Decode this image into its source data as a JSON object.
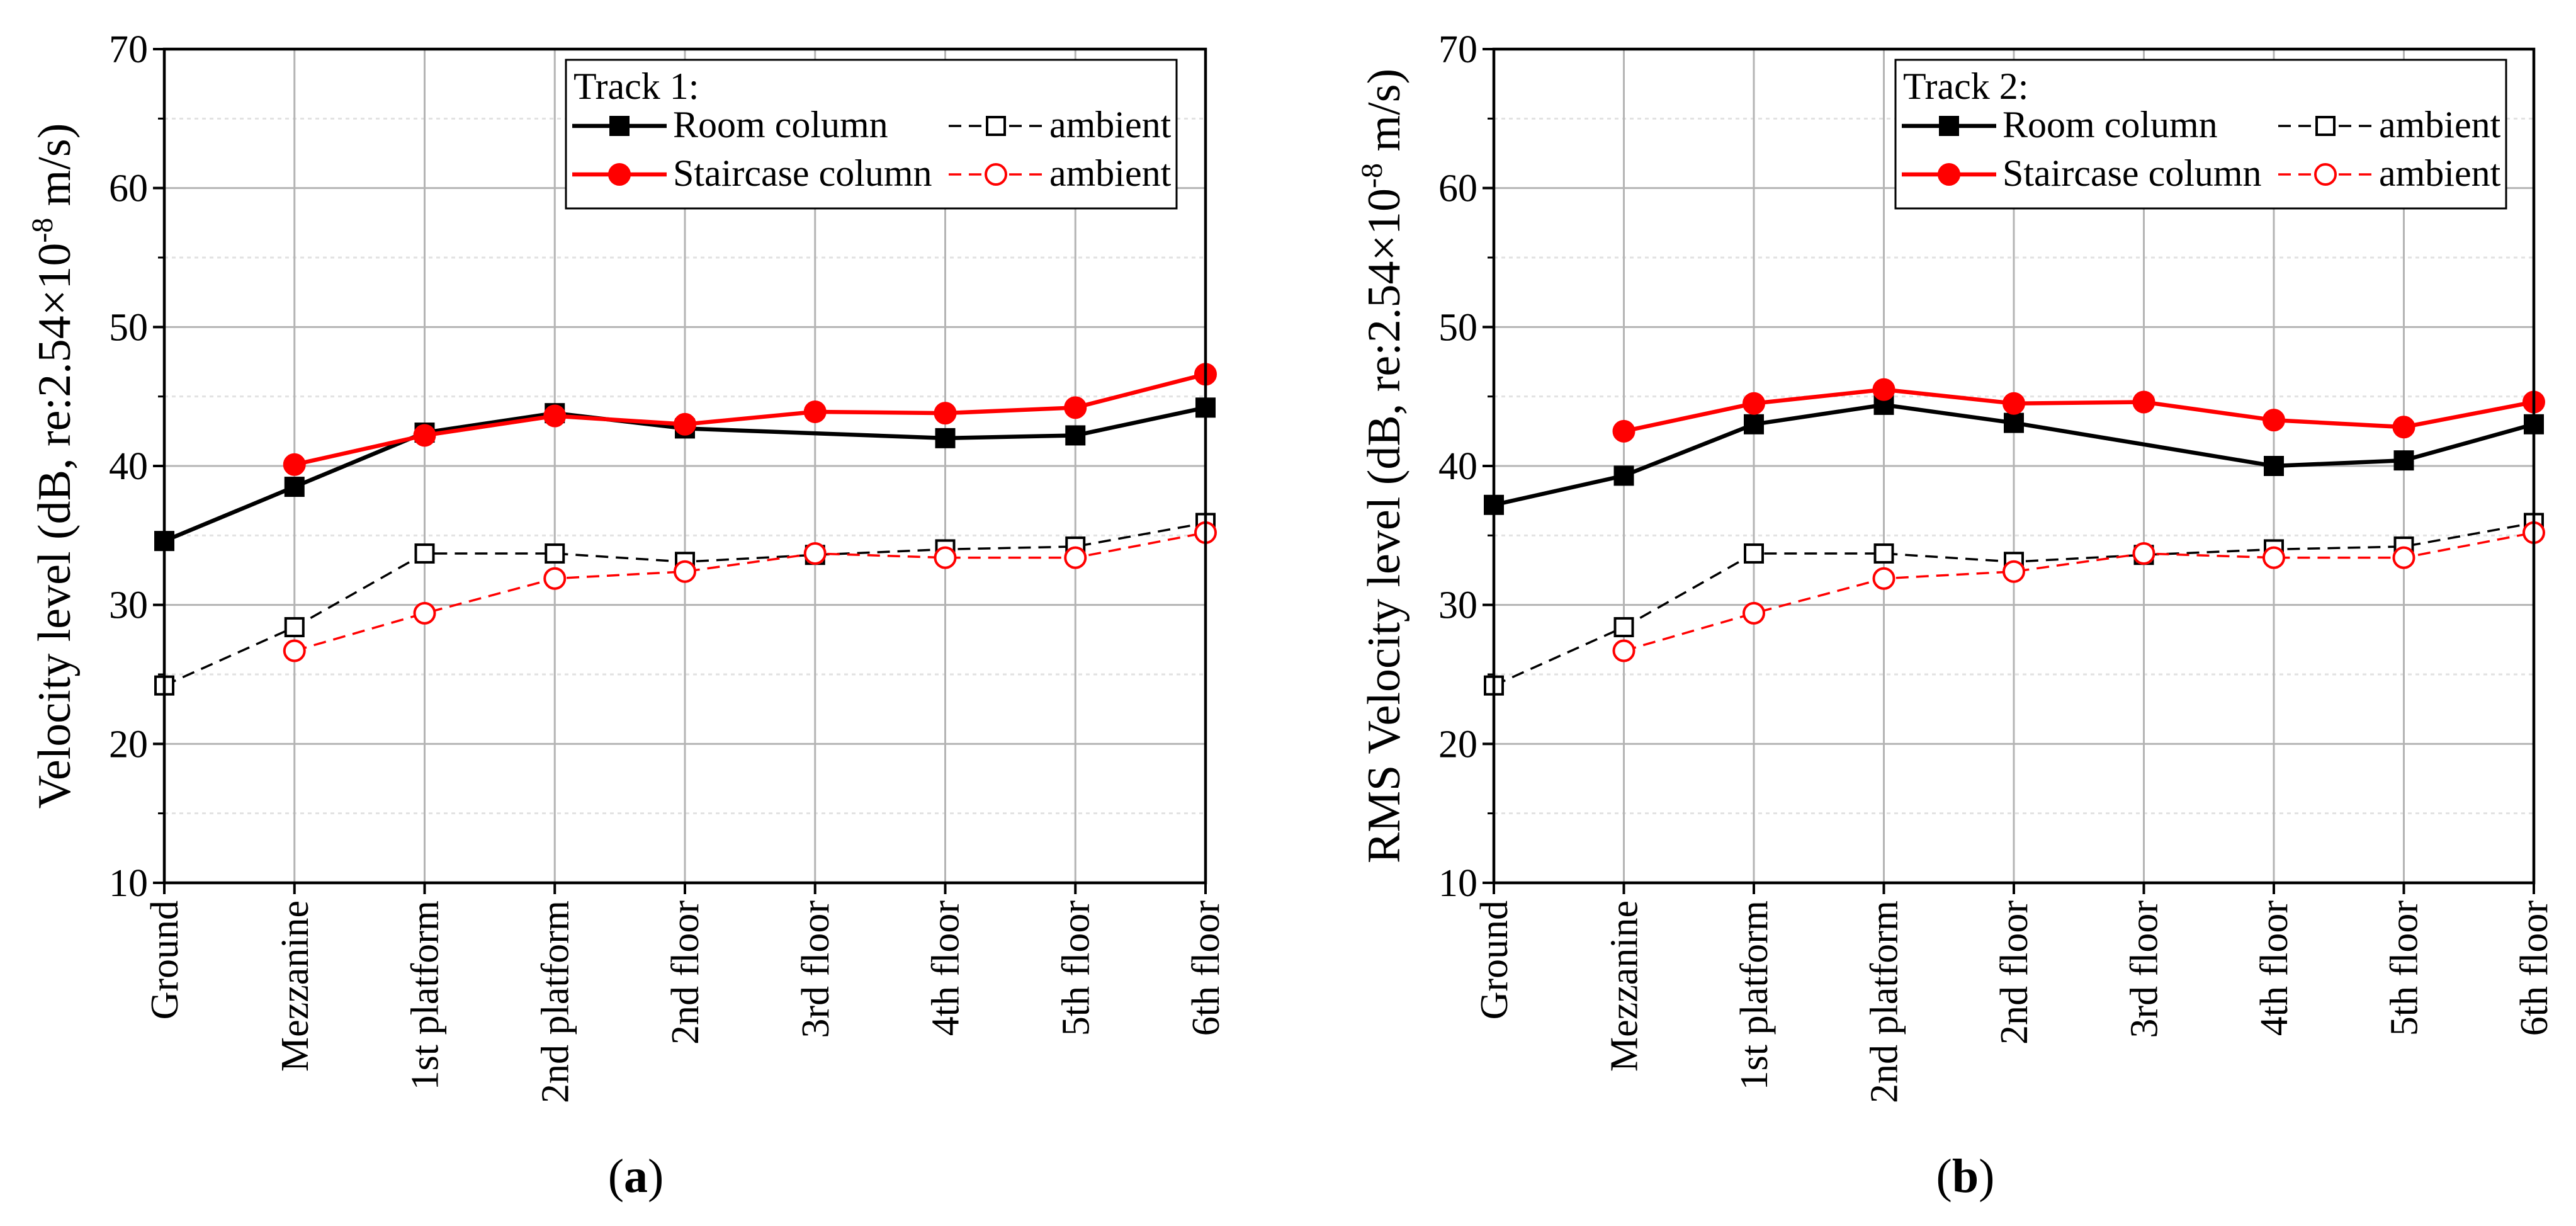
{
  "chart_data": [
    {
      "type": "line",
      "panel_label": "(a)",
      "ylabel": "Velocity level (dB, re:2.54×10-8 m/s)",
      "ylabel_parts": {
        "main": "Velocity level (dB, re:2.54×10",
        "sup": "-8",
        "tail": " m/s)"
      },
      "ylim": [
        10,
        70
      ],
      "yticks": [
        10,
        20,
        30,
        40,
        50,
        60,
        70
      ],
      "categories": [
        "Ground",
        "Mezzanine",
        "1st platform",
        "2nd platform",
        "2nd floor",
        "3rd floor",
        "4th floor",
        "5th floor",
        "6th floor"
      ],
      "grid": true,
      "legend": {
        "placement": "top-right",
        "title": "Track 1:",
        "entries": [
          "Room column",
          "ambient",
          "Staircase column",
          "ambient"
        ]
      },
      "series": [
        {
          "name": "Room column",
          "color": "#000000",
          "marker": "square-filled",
          "dash": "solid",
          "values": [
            34.6,
            38.5,
            42.4,
            43.8,
            42.7,
            null,
            42.0,
            42.2,
            44.2
          ]
        },
        {
          "name": "Room column ambient",
          "color": "#000000",
          "marker": "square-open",
          "dash": "dashed",
          "values": [
            24.2,
            28.4,
            33.7,
            33.7,
            33.1,
            33.6,
            34.0,
            34.2,
            35.9
          ]
        },
        {
          "name": "Staircase column",
          "color": "#ff0000",
          "marker": "circle-filled",
          "dash": "solid",
          "values": [
            null,
            40.1,
            42.2,
            43.6,
            43.0,
            43.9,
            43.8,
            44.2,
            46.6
          ]
        },
        {
          "name": "Staircase column ambient",
          "color": "#ff0000",
          "marker": "circle-open",
          "dash": "dashed",
          "values": [
            null,
            26.7,
            29.4,
            31.9,
            32.4,
            33.7,
            33.4,
            33.4,
            35.2
          ]
        }
      ]
    },
    {
      "type": "line",
      "panel_label": "(b)",
      "ylabel": "RMS Velocity level (dB, re:2.54×10-8 m/s)",
      "ylabel_parts": {
        "main": "RMS Velocity level (dB, re:2.54×10",
        "sup": "-8",
        "tail": " m/s)"
      },
      "ylim": [
        10,
        70
      ],
      "yticks": [
        10,
        20,
        30,
        40,
        50,
        60,
        70
      ],
      "categories": [
        "Ground",
        "Mezzanine",
        "1st platform",
        "2nd platform",
        "2nd floor",
        "3rd floor",
        "4th floor",
        "5th floor",
        "6th floor"
      ],
      "grid": true,
      "legend": {
        "placement": "top-right",
        "title": "Track 2:",
        "entries": [
          "Room column",
          "ambient",
          "Staircase column",
          "ambient"
        ]
      },
      "series": [
        {
          "name": "Room column",
          "color": "#000000",
          "marker": "square-filled",
          "dash": "solid",
          "values": [
            37.2,
            39.3,
            43.0,
            44.4,
            43.1,
            null,
            40.0,
            40.4,
            43.0
          ]
        },
        {
          "name": "Room column ambient",
          "color": "#000000",
          "marker": "square-open",
          "dash": "dashed",
          "values": [
            24.2,
            28.4,
            33.7,
            33.7,
            33.1,
            33.6,
            34.0,
            34.2,
            35.9
          ]
        },
        {
          "name": "Staircase column",
          "color": "#ff0000",
          "marker": "circle-filled",
          "dash": "solid",
          "values": [
            null,
            42.5,
            44.5,
            45.5,
            44.5,
            44.6,
            43.3,
            42.8,
            44.6
          ]
        },
        {
          "name": "Staircase column ambient",
          "color": "#ff0000",
          "marker": "circle-open",
          "dash": "dashed",
          "values": [
            null,
            26.7,
            29.4,
            31.9,
            32.4,
            33.7,
            33.4,
            33.4,
            35.2
          ]
        }
      ]
    }
  ]
}
